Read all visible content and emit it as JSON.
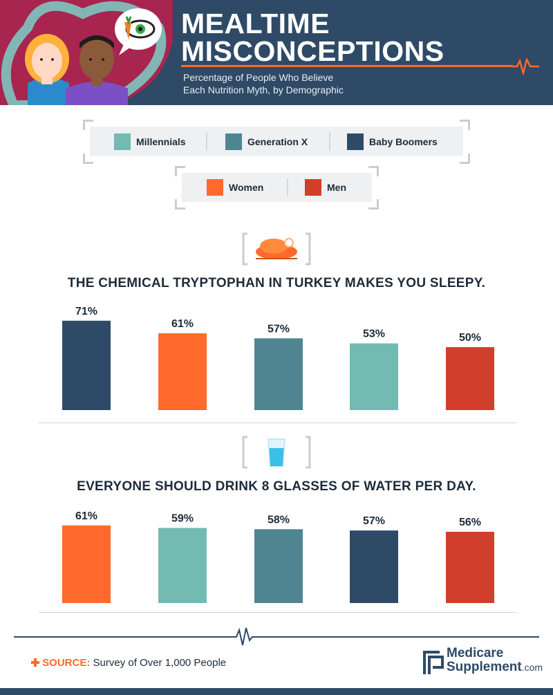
{
  "header": {
    "title_line1": "MEALTIME",
    "title_line2": "MISCONCEPTIONS",
    "subtitle_line1": "Percentage of People Who Believe",
    "subtitle_line2": "Each Nutrition Myth, by Demographic"
  },
  "legend": {
    "generations": [
      {
        "label": "Millennials",
        "color": "#72bab2"
      },
      {
        "label": "Generation X",
        "color": "#4e8591"
      },
      {
        "label": "Baby Boomers",
        "color": "#2e4a66"
      }
    ],
    "genders": [
      {
        "label": "Women",
        "color": "#ff6a2c"
      },
      {
        "label": "Men",
        "color": "#d23e2c"
      }
    ]
  },
  "chart_data": [
    {
      "type": "bar",
      "title": "THE CHEMICAL TRYPTOPHAN IN TURKEY MAKES YOU SLEEPY.",
      "icon": "turkey-icon",
      "categories": [
        "Baby Boomers",
        "Women",
        "Generation X",
        "Millennials",
        "Men"
      ],
      "values": [
        71,
        61,
        57,
        53,
        50
      ],
      "value_labels": [
        "71%",
        "61%",
        "57%",
        "53%",
        "50%"
      ],
      "colors": [
        "#2e4a66",
        "#ff6a2c",
        "#4e8591",
        "#72bab2",
        "#d23e2c"
      ],
      "unit": "%"
    },
    {
      "type": "bar",
      "title": "EVERYONE SHOULD DRINK 8 GLASSES OF WATER PER DAY.",
      "icon": "water-glass-icon",
      "categories": [
        "Women",
        "Millennials",
        "Generation X",
        "Baby Boomers",
        "Men"
      ],
      "values": [
        61,
        59,
        58,
        57,
        56
      ],
      "value_labels": [
        "61%",
        "59%",
        "58%",
        "57%",
        "56%"
      ],
      "colors": [
        "#ff6a2c",
        "#72bab2",
        "#4e8591",
        "#2e4a66",
        "#d23e2c"
      ],
      "unit": "%"
    }
  ],
  "footer": {
    "source_label": "SOURCE:",
    "source_text": "Survey of Over 1,000 People",
    "brand_line1": "Medicare",
    "brand_line2": "Supplement",
    "brand_suffix": ".com"
  }
}
